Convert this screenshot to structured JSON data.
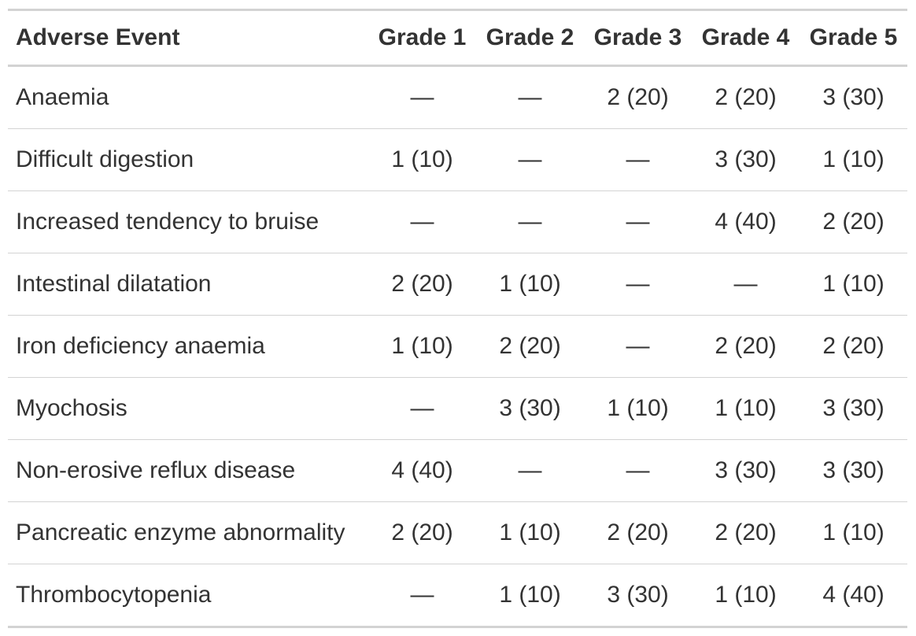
{
  "table": {
    "headers": [
      "Adverse Event",
      "Grade 1",
      "Grade 2",
      "Grade 3",
      "Grade 4",
      "Grade 5"
    ],
    "rows": [
      [
        "Anaemia",
        "—",
        "—",
        "2 (20)",
        "2 (20)",
        "3 (30)"
      ],
      [
        "Difficult digestion",
        "1 (10)",
        "—",
        "—",
        "3 (30)",
        "1 (10)"
      ],
      [
        "Increased tendency to bruise",
        "—",
        "—",
        "—",
        "4 (40)",
        "2 (20)"
      ],
      [
        "Intestinal dilatation",
        "2 (20)",
        "1 (10)",
        "—",
        "—",
        "1 (10)"
      ],
      [
        "Iron deficiency anaemia",
        "1 (10)",
        "2 (20)",
        "—",
        "2 (20)",
        "2 (20)"
      ],
      [
        "Myochosis",
        "—",
        "3 (30)",
        "1 (10)",
        "1 (10)",
        "3 (30)"
      ],
      [
        "Non-erosive reflux disease",
        "4 (40)",
        "—",
        "—",
        "3 (30)",
        "3 (30)"
      ],
      [
        "Pancreatic enzyme abnormality",
        "2 (20)",
        "1 (10)",
        "2 (20)",
        "2 (20)",
        "1 (10)"
      ],
      [
        "Thrombocytopenia",
        "—",
        "1 (10)",
        "3 (30)",
        "1 (10)",
        "4 (40)"
      ]
    ]
  }
}
